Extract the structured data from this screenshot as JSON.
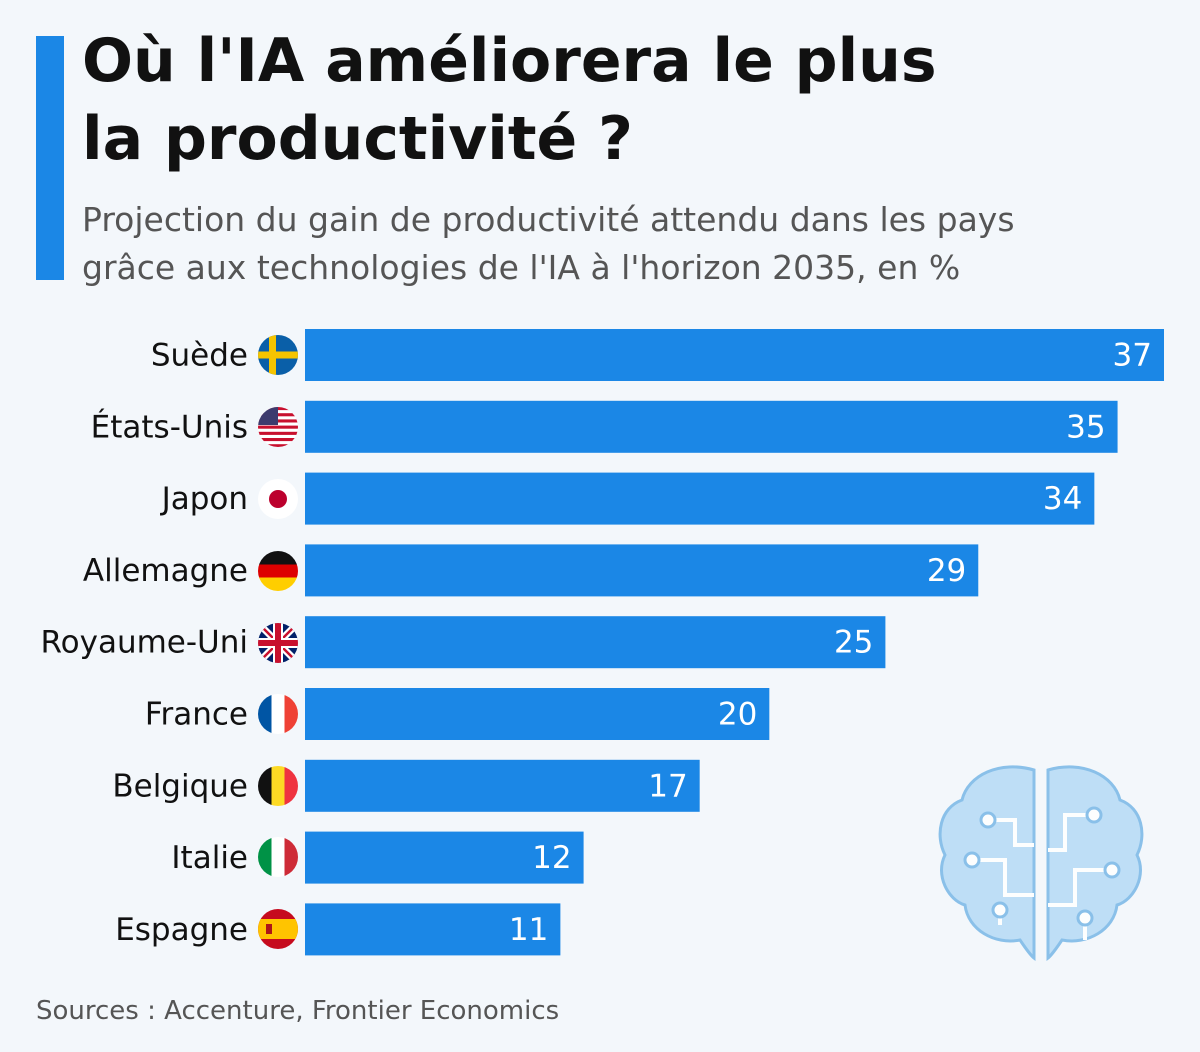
{
  "chart_data": {
    "type": "bar",
    "orientation": "horizontal",
    "title": "Où l'IA améliorera le plus\nla productivité ?",
    "subtitle": "Projection du gain de productivité attendu dans les pays\ngrâce aux technologies de l'IA à l'horizon 2035, en %",
    "categories": [
      "Suède",
      "États-Unis",
      "Japon",
      "Allemagne",
      "Royaume-Uni",
      "France",
      "Belgique",
      "Italie",
      "Espagne"
    ],
    "values": [
      37,
      35,
      34,
      29,
      25,
      20,
      17,
      12,
      11
    ],
    "color": "#1b87e6",
    "source": "Sources : Accenture, Frontier Economics"
  }
}
